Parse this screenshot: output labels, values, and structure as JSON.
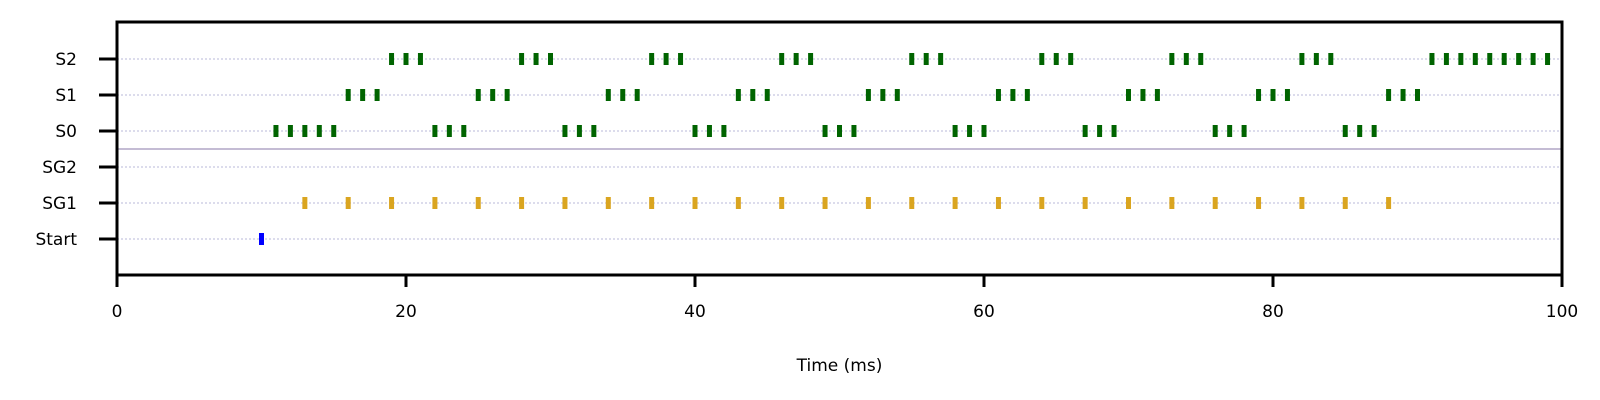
{
  "chart_data": {
    "type": "scatter",
    "xlabel": "Time (ms)",
    "ylabel": "",
    "xlim": [
      0,
      100
    ],
    "x_ticks": [
      0,
      20,
      40,
      60,
      80,
      100
    ],
    "x_tick_labels": [
      "0",
      "20",
      "40",
      "60",
      "80",
      "100"
    ],
    "categories": [
      "Start",
      "SG1",
      "SG2",
      "S0",
      "S1",
      "S2"
    ],
    "grid": "dotted horizontal lines at each row",
    "separator_between": [
      "SG2",
      "S0"
    ],
    "colors": {
      "Start": "#0000ff",
      "SG1": "#daa520",
      "SG2": "#daa520",
      "S0": "#006400",
      "S1": "#006400",
      "S2": "#006400",
      "grid": "#b8b8d8",
      "separator": "#8a7aa8"
    },
    "series": [
      {
        "name": "Start",
        "x": [
          10
        ]
      },
      {
        "name": "SG1",
        "x": [
          13,
          16,
          19,
          22,
          25,
          28,
          31,
          34,
          37,
          40,
          43,
          46,
          49,
          52,
          55,
          58,
          61,
          64,
          67,
          70,
          73,
          76,
          79,
          82,
          85,
          88
        ]
      },
      {
        "name": "SG2",
        "x": []
      },
      {
        "name": "S0",
        "x": [
          11,
          12,
          13,
          14,
          15,
          22,
          23,
          24,
          31,
          32,
          33,
          40,
          41,
          42,
          49,
          50,
          51,
          58,
          59,
          60,
          67,
          68,
          69,
          76,
          77,
          78,
          85,
          86,
          87
        ]
      },
      {
        "name": "S1",
        "x": [
          16,
          17,
          18,
          25,
          26,
          27,
          34,
          35,
          36,
          43,
          44,
          45,
          52,
          53,
          54,
          61,
          62,
          63,
          70,
          71,
          72,
          79,
          80,
          81,
          88,
          89,
          90
        ]
      },
      {
        "name": "S2",
        "x": [
          19,
          20,
          21,
          28,
          29,
          30,
          37,
          38,
          39,
          46,
          47,
          48,
          55,
          56,
          57,
          64,
          65,
          66,
          73,
          74,
          75,
          82,
          83,
          84,
          91,
          92,
          93,
          94,
          95,
          96,
          97,
          98,
          99
        ]
      }
    ]
  }
}
